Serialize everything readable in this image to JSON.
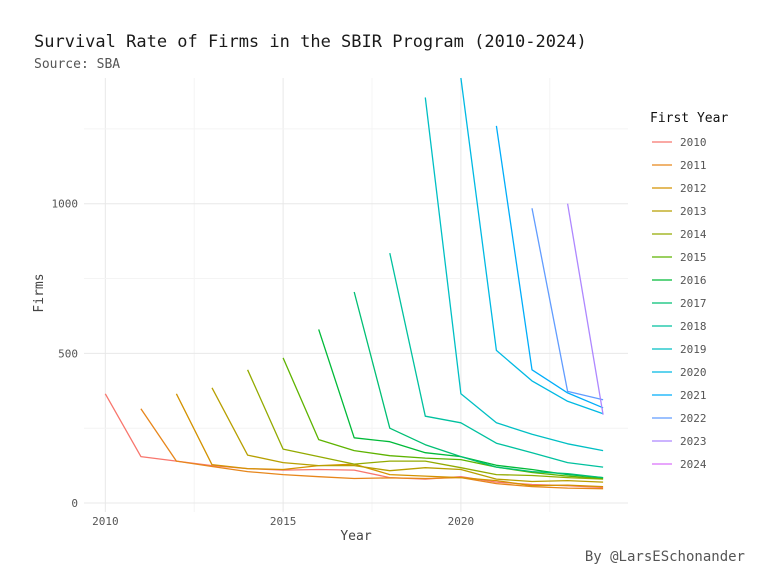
{
  "chart_data": {
    "type": "line",
    "title": "Survival Rate of Firms in the SBIR Program (2010-2024)",
    "subtitle": "Source: SBA",
    "xlabel": "Year",
    "ylabel": "Firms",
    "caption": "By @LarsESchonander",
    "xlim": [
      2009.4,
      2024.7
    ],
    "ylim": [
      -30,
      1420
    ],
    "x_ticks": [
      2010,
      2015,
      2020
    ],
    "y_ticks": [
      0,
      500,
      1000
    ],
    "grid": true,
    "legend": {
      "title": "First Year",
      "position": "right"
    },
    "series": [
      {
        "name": "2010",
        "color": "#F8766D",
        "points": [
          [
            2010,
            365
          ],
          [
            2011,
            155
          ],
          [
            2012,
            140
          ],
          [
            2013,
            125
          ],
          [
            2014,
            115
          ],
          [
            2015,
            110
          ],
          [
            2016,
            112
          ],
          [
            2017,
            110
          ],
          [
            2018,
            85
          ],
          [
            2019,
            80
          ],
          [
            2020,
            88
          ],
          [
            2021,
            70
          ],
          [
            2022,
            62
          ],
          [
            2023,
            58
          ],
          [
            2024,
            52
          ]
        ]
      },
      {
        "name": "2011",
        "color": "#E7861B",
        "points": [
          [
            2011,
            315
          ],
          [
            2012,
            140
          ],
          [
            2013,
            122
          ],
          [
            2014,
            105
          ],
          [
            2015,
            95
          ],
          [
            2016,
            88
          ],
          [
            2017,
            82
          ],
          [
            2018,
            84
          ],
          [
            2019,
            82
          ],
          [
            2020,
            85
          ],
          [
            2021,
            65
          ],
          [
            2022,
            55
          ],
          [
            2023,
            50
          ],
          [
            2024,
            48
          ]
        ]
      },
      {
        "name": "2012",
        "color": "#D39200",
        "points": [
          [
            2012,
            365
          ],
          [
            2013,
            128
          ],
          [
            2014,
            115
          ],
          [
            2015,
            112
          ],
          [
            2016,
            125
          ],
          [
            2017,
            130
          ],
          [
            2018,
            95
          ],
          [
            2019,
            90
          ],
          [
            2020,
            85
          ],
          [
            2021,
            75
          ],
          [
            2022,
            58
          ],
          [
            2023,
            60
          ],
          [
            2024,
            55
          ]
        ]
      },
      {
        "name": "2013",
        "color": "#B79F00",
        "points": [
          [
            2013,
            385
          ],
          [
            2014,
            160
          ],
          [
            2015,
            135
          ],
          [
            2016,
            125
          ],
          [
            2017,
            125
          ],
          [
            2018,
            108
          ],
          [
            2019,
            118
          ],
          [
            2020,
            112
          ],
          [
            2021,
            80
          ],
          [
            2022,
            72
          ],
          [
            2023,
            75
          ],
          [
            2024,
            70
          ]
        ]
      },
      {
        "name": "2014",
        "color": "#93AA00",
        "points": [
          [
            2014,
            445
          ],
          [
            2015,
            180
          ],
          [
            2016,
            155
          ],
          [
            2017,
            130
          ],
          [
            2018,
            140
          ],
          [
            2019,
            140
          ],
          [
            2020,
            118
          ],
          [
            2021,
            95
          ],
          [
            2022,
            92
          ],
          [
            2023,
            85
          ],
          [
            2024,
            80
          ]
        ]
      },
      {
        "name": "2015",
        "color": "#5EB300",
        "points": [
          [
            2015,
            485
          ],
          [
            2016,
            212
          ],
          [
            2017,
            175
          ],
          [
            2018,
            158
          ],
          [
            2019,
            150
          ],
          [
            2020,
            145
          ],
          [
            2021,
            120
          ],
          [
            2022,
            102
          ],
          [
            2023,
            90
          ],
          [
            2024,
            82
          ]
        ]
      },
      {
        "name": "2016",
        "color": "#00BA38",
        "points": [
          [
            2016,
            580
          ],
          [
            2017,
            218
          ],
          [
            2018,
            205
          ],
          [
            2019,
            168
          ],
          [
            2020,
            155
          ],
          [
            2021,
            126
          ],
          [
            2022,
            112
          ],
          [
            2023,
            95
          ],
          [
            2024,
            85
          ]
        ]
      },
      {
        "name": "2017",
        "color": "#00BF74",
        "points": [
          [
            2017,
            705
          ],
          [
            2018,
            250
          ],
          [
            2019,
            195
          ],
          [
            2020,
            155
          ],
          [
            2021,
            120
          ],
          [
            2022,
            105
          ],
          [
            2023,
            98
          ],
          [
            2024,
            85
          ]
        ]
      },
      {
        "name": "2018",
        "color": "#00C19F",
        "points": [
          [
            2018,
            835
          ],
          [
            2019,
            290
          ],
          [
            2020,
            268
          ],
          [
            2021,
            200
          ],
          [
            2022,
            168
          ],
          [
            2023,
            135
          ],
          [
            2024,
            120
          ]
        ]
      },
      {
        "name": "2019",
        "color": "#00BFC4",
        "points": [
          [
            2019,
            1355
          ],
          [
            2020,
            365
          ],
          [
            2021,
            268
          ],
          [
            2022,
            230
          ],
          [
            2023,
            198
          ],
          [
            2024,
            175
          ]
        ]
      },
      {
        "name": "2020",
        "color": "#00B9E3",
        "points": [
          [
            2020,
            1420
          ],
          [
            2021,
            510
          ],
          [
            2022,
            408
          ],
          [
            2023,
            340
          ],
          [
            2024,
            298
          ]
        ]
      },
      {
        "name": "2021",
        "color": "#00ADFA",
        "points": [
          [
            2021,
            1260
          ],
          [
            2022,
            445
          ],
          [
            2023,
            368
          ],
          [
            2024,
            318
          ]
        ]
      },
      {
        "name": "2022",
        "color": "#619CFF",
        "points": [
          [
            2022,
            985
          ],
          [
            2023,
            373
          ],
          [
            2024,
            345
          ]
        ]
      },
      {
        "name": "2023",
        "color": "#AE87FF",
        "points": [
          [
            2023,
            1000
          ],
          [
            2024,
            295
          ]
        ]
      },
      {
        "name": "2024",
        "color": "#DB72FB",
        "points": [
          [
            2024,
            350
          ]
        ]
      }
    ]
  }
}
